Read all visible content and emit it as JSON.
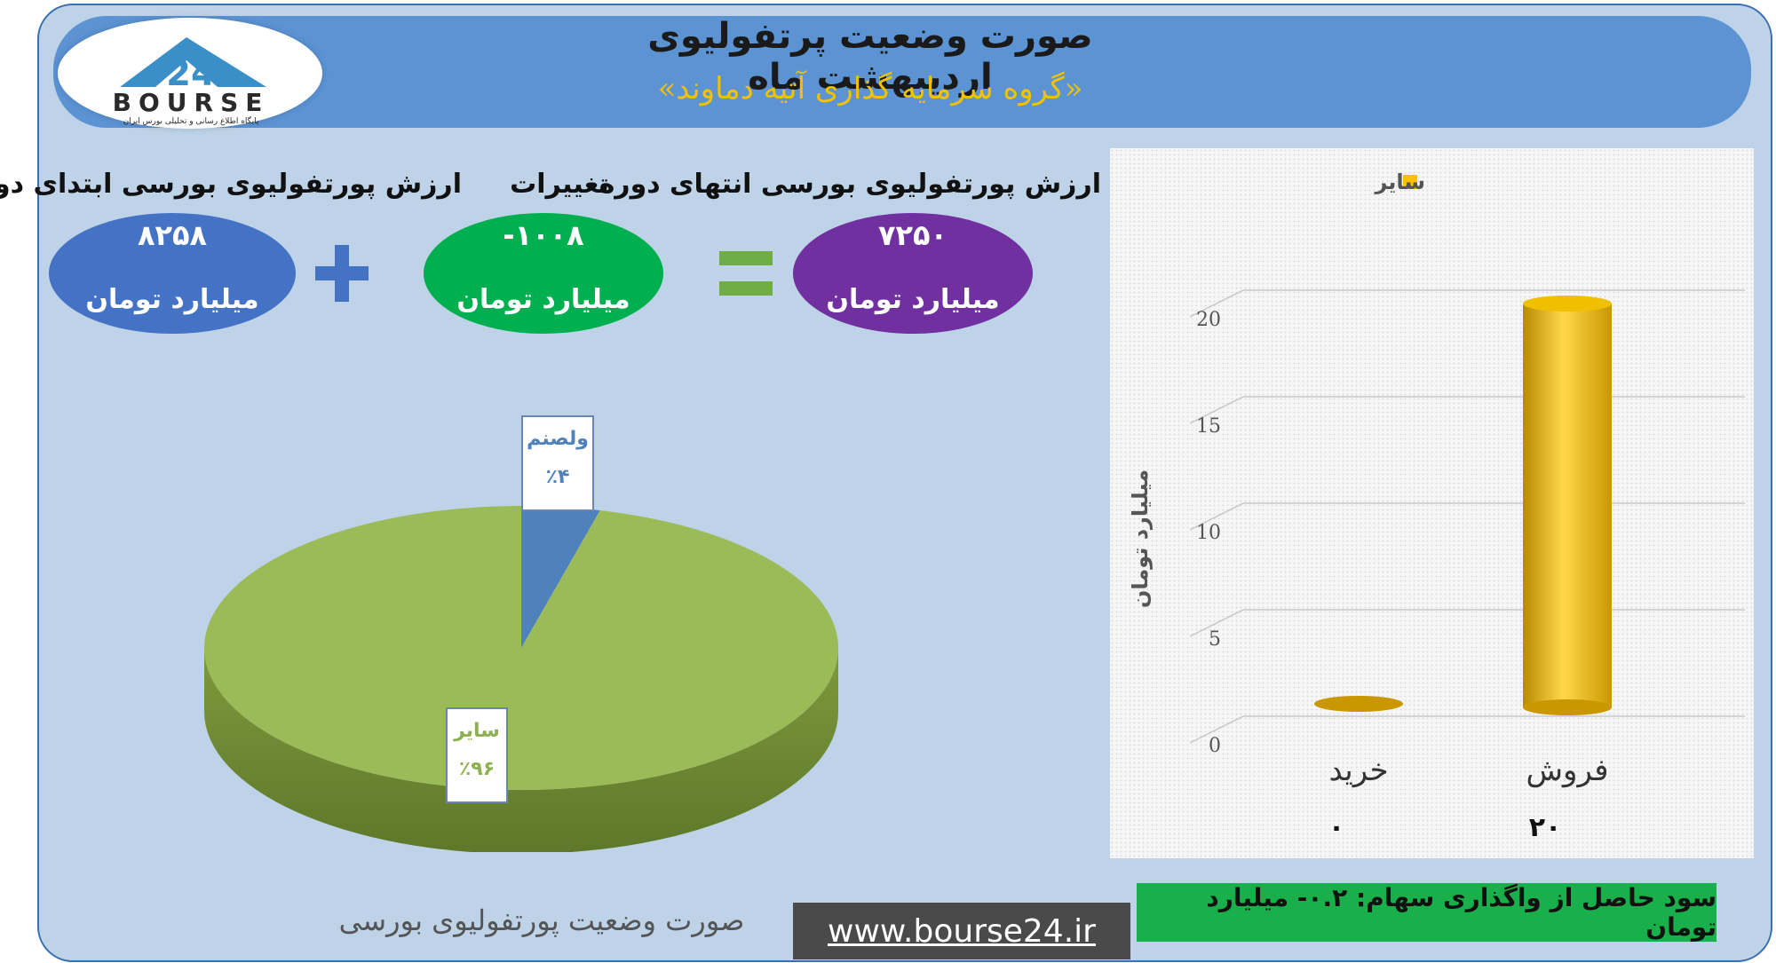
{
  "header": {
    "title": "صورت وضعیت پرتفولیوی اردیبهشت ماه",
    "subtitle": "«گروه سرمایه گذاری آتیه دماوند»"
  },
  "logo": {
    "text": "BOURSE",
    "number": "24",
    "tagline": "پایگاه اطلاع رسانی و تحلیلی بورس ایران"
  },
  "summary": {
    "start_label": "ارزش پورتفولیوی بورسی ابتدای دوره",
    "start_value": "۸۲۵۸",
    "change_label": "تغییرات",
    "change_value": "-۱۰۰۸",
    "end_label": "ارزش پورتفولیوی بورسی انتهای دوره",
    "end_value": "۷۲۵۰",
    "unit": "میلیارد تومان",
    "colors": {
      "start": "#4472c4",
      "change": "#00b050",
      "end": "#7030a0",
      "plus": "#4472c4",
      "equals": "#70ad47"
    }
  },
  "pie_caption": "صورت وضعیت پورتفولیوی بورسی",
  "website": "www.bourse24.ir",
  "profit_note": "سود حاصل از واگذاری سهام: ۰.۲- میلیارد تومان",
  "chart_data": [
    {
      "type": "pie",
      "labels": [
        "ولصنم",
        "سایر"
      ],
      "values": [
        4,
        96
      ],
      "value_labels": [
        "٪۴",
        "٪۹۶"
      ],
      "colors": [
        "#4f81bd",
        "#9bbb59"
      ]
    },
    {
      "type": "bar",
      "categories": [
        "خرید",
        "فروش"
      ],
      "series": [
        {
          "name": "سایر",
          "values": [
            0,
            20
          ],
          "color": "#ffc000"
        }
      ],
      "value_labels": [
        "۰",
        "۲۰"
      ],
      "ylabel": "میلیارد تومان",
      "ylim": [
        0,
        20
      ],
      "yticks": [
        0,
        5,
        10,
        15,
        20
      ],
      "legend": "top"
    }
  ]
}
